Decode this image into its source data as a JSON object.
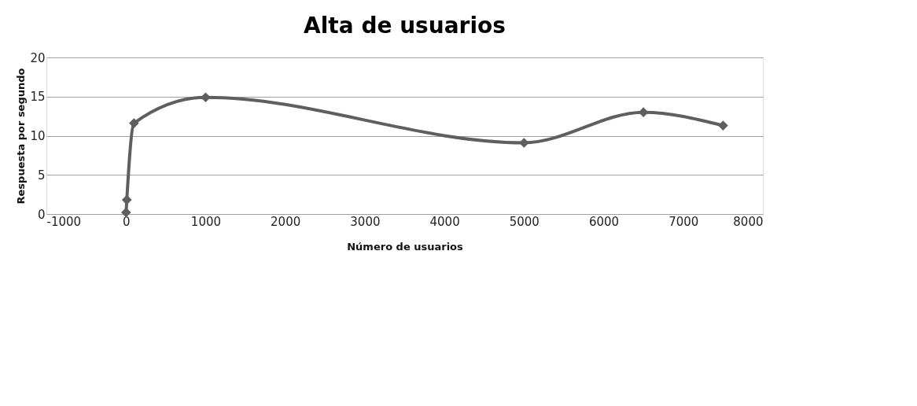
{
  "chart_data": {
    "type": "line",
    "title": "Alta de usuarios",
    "xlabel": "Número de usuarios",
    "ylabel": "Respuesta por segundo",
    "x": [
      1,
      10,
      100,
      1000,
      5000,
      6500,
      7500
    ],
    "series": [
      {
        "color": "#5f5f5f",
        "values": [
          0.2,
          1.8,
          11.6,
          14.9,
          9.1,
          13.0,
          11.3
        ]
      }
    ],
    "xlim": [
      -1000,
      8000
    ],
    "xticks": [
      -1000,
      0,
      1000,
      2000,
      3000,
      4000,
      5000,
      6000,
      7000,
      8000
    ],
    "ylim": [
      0,
      20
    ],
    "yticks": [
      0,
      5,
      10,
      15,
      20
    ],
    "grid": "y",
    "marker": "diamond",
    "line_style": "solid"
  }
}
